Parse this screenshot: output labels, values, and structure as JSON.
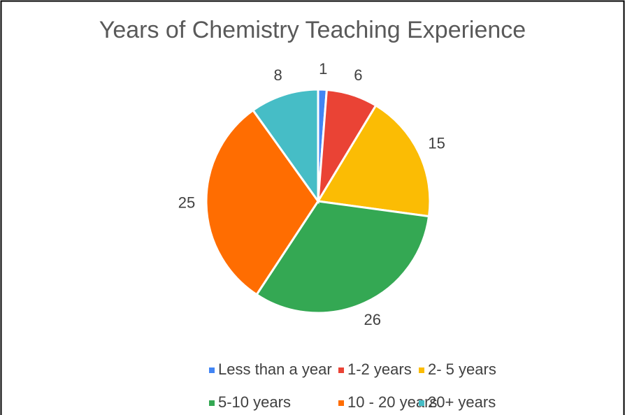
{
  "chart_data": {
    "type": "pie",
    "title": "Years of Chemistry Teaching Experience",
    "categories": [
      "Less than a year",
      "1-2 years",
      "2- 5 years",
      "5-10 years",
      "10 - 20 years",
      "20+ years"
    ],
    "values": [
      1,
      6,
      15,
      26,
      25,
      8
    ],
    "colors": [
      "#4285f4",
      "#ea4335",
      "#fbbc04",
      "#34a853",
      "#ff6d01",
      "#46bdc6"
    ],
    "legend": "bottom"
  }
}
